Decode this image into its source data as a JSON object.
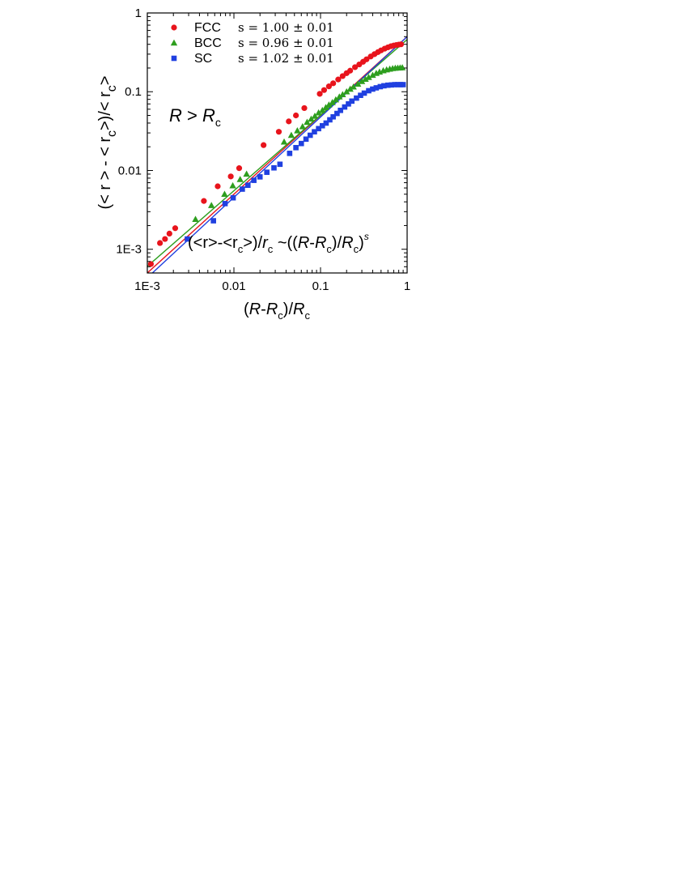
{
  "chart_data": {
    "type": "scatter",
    "xscale": "log",
    "yscale": "log",
    "xlim": [
      0.001,
      1
    ],
    "ylim": [
      0.0005,
      1
    ],
    "x_ticks": [
      {
        "value": 0.001,
        "label": "1E-3"
      },
      {
        "value": 0.01,
        "label": "0.01"
      },
      {
        "value": 0.1,
        "label": "0.1"
      },
      {
        "value": 1,
        "label": "1"
      }
    ],
    "y_ticks": [
      {
        "value": 0.001,
        "label": "1E-3"
      },
      {
        "value": 0.01,
        "label": "0.01"
      },
      {
        "value": 0.1,
        "label": "0.1"
      },
      {
        "value": 1,
        "label": "1"
      }
    ],
    "xlabel": {
      "open": "(",
      "a": "R",
      "b": "-",
      "c": "R",
      "c_sub": "c",
      "d": ")/",
      "e": "R",
      "e_sub": "c"
    },
    "ylabel": {
      "main1": "(< r > - < r",
      "sub1": "c",
      "main2": ">)/< r",
      "sub2": "c",
      "main3": ">"
    },
    "annotation": {
      "a": "R",
      "b": " > ",
      "c": "R",
      "c_sub": "c"
    },
    "formula": {
      "p1": "(<r>-<r",
      "s1": "c",
      "p2": ">)/",
      "p3": "r",
      "s2": "c",
      "p4": " ~((",
      "p5": "R",
      "p6": "-",
      "p7": "R",
      "s3": "c",
      "p8": ")/",
      "p9": "R",
      "s4": "c",
      "p10": ")",
      "sup": "s"
    },
    "legend": {
      "placement": "top-left"
    },
    "grid": false,
    "series": [
      {
        "name": "FCC",
        "slope_text": "s = 1.00 ± 0.01",
        "color": "#e8141c",
        "marker": "circle",
        "fit": {
          "a": 0.5,
          "s": 1.0
        },
        "x": [
          0.0011,
          0.0014,
          0.0016,
          0.0018,
          0.0021,
          0.0045,
          0.0065,
          0.0092,
          0.0115,
          0.022,
          0.033,
          0.043,
          0.052,
          0.065,
          0.098,
          0.11,
          0.125,
          0.14,
          0.16,
          0.18,
          0.2,
          0.22,
          0.25,
          0.28,
          0.31,
          0.34,
          0.38,
          0.42,
          0.46,
          0.5,
          0.55,
          0.6,
          0.65,
          0.7,
          0.75,
          0.8,
          0.85
        ],
        "y": [
          0.00065,
          0.0012,
          0.00135,
          0.00158,
          0.00185,
          0.0041,
          0.0063,
          0.0084,
          0.0107,
          0.021,
          0.031,
          0.042,
          0.05,
          0.062,
          0.094,
          0.105,
          0.117,
          0.128,
          0.143,
          0.158,
          0.172,
          0.185,
          0.205,
          0.222,
          0.24,
          0.258,
          0.28,
          0.3,
          0.318,
          0.335,
          0.352,
          0.366,
          0.378,
          0.386,
          0.392,
          0.396,
          0.4
        ]
      },
      {
        "name": "BCC",
        "slope_text": "s = 0.96 ± 0.01",
        "color": "#2d9e1e",
        "marker": "triangle",
        "fit": {
          "a": 0.46,
          "s": 0.96
        },
        "x": [
          0.0036,
          0.0055,
          0.0078,
          0.0097,
          0.0118,
          0.014,
          0.038,
          0.046,
          0.054,
          0.062,
          0.07,
          0.078,
          0.086,
          0.095,
          0.105,
          0.115,
          0.125,
          0.137,
          0.15,
          0.165,
          0.18,
          0.2,
          0.22,
          0.24,
          0.27,
          0.3,
          0.33,
          0.36,
          0.4,
          0.44,
          0.48,
          0.53,
          0.58,
          0.63,
          0.68,
          0.73,
          0.78,
          0.83,
          0.88
        ],
        "y": [
          0.0024,
          0.0036,
          0.005,
          0.0064,
          0.0077,
          0.009,
          0.023,
          0.028,
          0.032,
          0.036,
          0.041,
          0.045,
          0.049,
          0.054,
          0.058,
          0.063,
          0.068,
          0.073,
          0.079,
          0.086,
          0.092,
          0.1,
          0.108,
          0.115,
          0.125,
          0.135,
          0.144,
          0.152,
          0.162,
          0.171,
          0.178,
          0.185,
          0.19,
          0.194,
          0.197,
          0.199,
          0.2,
          0.201,
          0.202
        ]
      },
      {
        "name": "SC",
        "slope_text": "s = 1.02 ± 0.01",
        "color": "#2040e0",
        "marker": "square",
        "fit": {
          "a": 0.5,
          "s": 1.02
        },
        "x": [
          0.0029,
          0.0058,
          0.0079,
          0.0098,
          0.0125,
          0.0145,
          0.017,
          0.02,
          0.024,
          0.029,
          0.034,
          0.044,
          0.052,
          0.06,
          0.068,
          0.076,
          0.085,
          0.095,
          0.105,
          0.116,
          0.128,
          0.14,
          0.155,
          0.17,
          0.19,
          0.21,
          0.23,
          0.26,
          0.29,
          0.32,
          0.36,
          0.4,
          0.44,
          0.49,
          0.54,
          0.6,
          0.66,
          0.72,
          0.78,
          0.84,
          0.9
        ],
        "y": [
          0.00135,
          0.0023,
          0.0038,
          0.0045,
          0.0058,
          0.0065,
          0.0075,
          0.0083,
          0.0095,
          0.0108,
          0.012,
          0.0165,
          0.0195,
          0.022,
          0.025,
          0.028,
          0.031,
          0.034,
          0.037,
          0.04,
          0.044,
          0.048,
          0.053,
          0.058,
          0.064,
          0.07,
          0.076,
          0.083,
          0.09,
          0.096,
          0.103,
          0.108,
          0.112,
          0.116,
          0.119,
          0.121,
          0.122,
          0.123,
          0.123,
          0.123,
          0.123
        ]
      }
    ]
  }
}
